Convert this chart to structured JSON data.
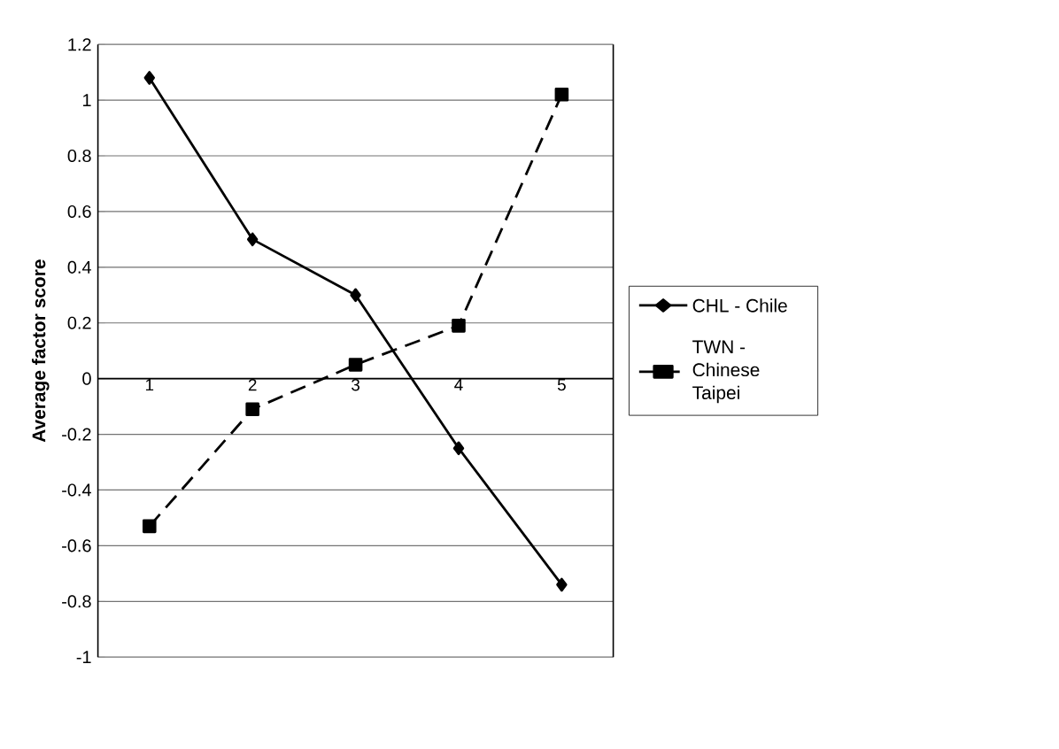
{
  "chart_data": {
    "type": "line",
    "ylabel": "Average factor score",
    "categories": [
      "1",
      "2",
      "3",
      "4",
      "5"
    ],
    "series": [
      {
        "name": "CHL - Chile",
        "color": "#000000",
        "marker": "diamond",
        "line_style": "solid",
        "values": [
          1.08,
          0.5,
          0.3,
          -0.25,
          -0.74
        ]
      },
      {
        "name": "TWN - Chinese Taipei",
        "color": "#000000",
        "marker": "square",
        "line_style": "dashed",
        "values": [
          -0.53,
          -0.11,
          0.05,
          0.19,
          1.02
        ]
      }
    ],
    "ylim": [
      -1,
      1.2
    ],
    "yticks": [
      -1,
      -0.8,
      -0.6,
      -0.4,
      -0.2,
      0,
      0.2,
      0.4,
      0.6,
      0.8,
      1,
      1.2
    ],
    "grid": "y",
    "legend": "right"
  }
}
